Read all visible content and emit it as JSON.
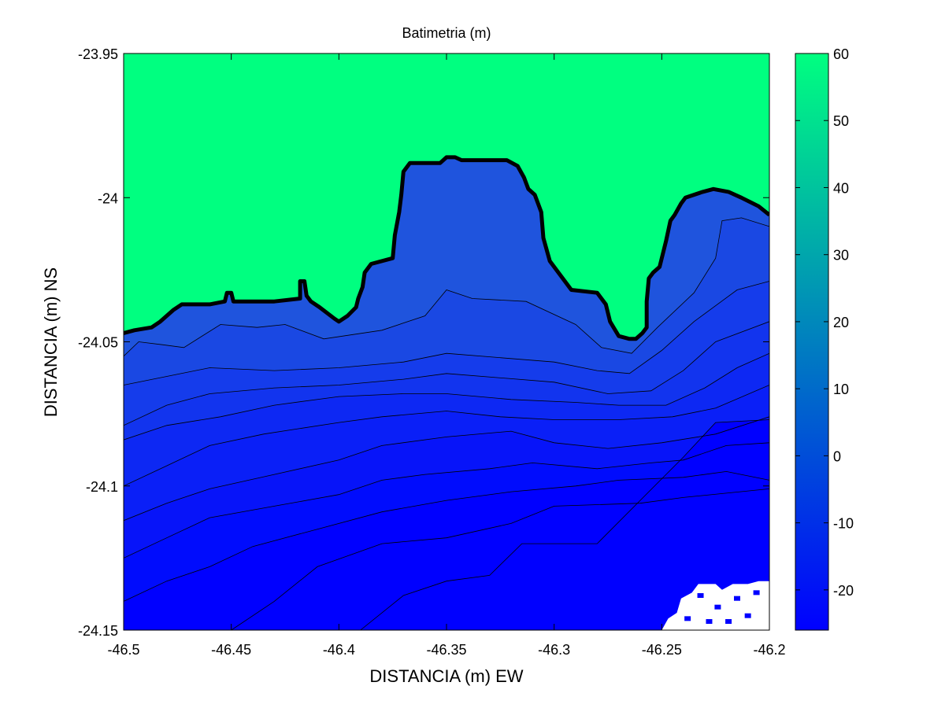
{
  "chart_data": {
    "type": "contour",
    "title": "Batimetria (m)",
    "xlabel": "DISTANCIA (m) EW",
    "ylabel": "DISTANCIA (m) NS",
    "xlim": [
      -46.5,
      -46.2
    ],
    "ylim": [
      -24.15,
      -23.95
    ],
    "xticks": [
      -46.5,
      -46.45,
      -46.4,
      -46.35,
      -46.3,
      -46.25,
      -46.2
    ],
    "xtick_labels": [
      "-46.5",
      "-46.45",
      "-46.4",
      "-46.35",
      "-46.3",
      "-46.25",
      "-46.2"
    ],
    "yticks": [
      -24.15,
      -24.1,
      -24.05,
      -24,
      -23.95
    ],
    "ytick_labels": [
      "-24.15",
      "-24.1",
      "-24.05",
      "-24",
      "-23.95"
    ],
    "colorbar": {
      "range": [
        -26,
        60
      ],
      "ticks": [
        -20,
        -10,
        0,
        10,
        20,
        30,
        40,
        50,
        60
      ],
      "tick_labels": [
        "-20",
        "-10",
        "0",
        "10",
        "20",
        "30",
        "40",
        "50",
        "60"
      ],
      "colors": [
        "#0000ff",
        "#00ff80"
      ]
    },
    "land_color": "#00ff80",
    "water_colors": [
      "#1f54dd",
      "#1a48e3",
      "#153ceb",
      "#1234ee",
      "#0d28f3",
      "#0a1ff7",
      "#0714f9",
      "#000cfd",
      "#0000ff"
    ],
    "grid": false,
    "coastline": [
      [
        -46.5,
        -24.047
      ],
      [
        -46.495,
        -24.046
      ],
      [
        -46.487,
        -24.045
      ],
      [
        -46.483,
        -24.043
      ],
      [
        -46.477,
        -24.039
      ],
      [
        -46.473,
        -24.037
      ],
      [
        -46.46,
        -24.037
      ],
      [
        -46.453,
        -24.036
      ],
      [
        -46.452,
        -24.033
      ],
      [
        -46.45,
        -24.033
      ],
      [
        -46.449,
        -24.036
      ],
      [
        -46.43,
        -24.036
      ],
      [
        -46.418,
        -24.035
      ],
      [
        -46.418,
        -24.029
      ],
      [
        -46.416,
        -24.029
      ],
      [
        -46.415,
        -24.034
      ],
      [
        -46.413,
        -24.036
      ],
      [
        -46.409,
        -24.038
      ],
      [
        -46.402,
        -24.042
      ],
      [
        -46.4,
        -24.043
      ],
      [
        -46.396,
        -24.041
      ],
      [
        -46.392,
        -24.038
      ],
      [
        -46.391,
        -24.035
      ],
      [
        -46.389,
        -24.031
      ],
      [
        -46.388,
        -24.026
      ],
      [
        -46.385,
        -24.023
      ],
      [
        -46.375,
        -24.021
      ],
      [
        -46.374,
        -24.013
      ],
      [
        -46.372,
        -24.005
      ],
      [
        -46.371,
        -23.999
      ],
      [
        -46.37,
        -23.991
      ],
      [
        -46.367,
        -23.988
      ],
      [
        -46.353,
        -23.988
      ],
      [
        -46.35,
        -23.986
      ],
      [
        -46.346,
        -23.986
      ],
      [
        -46.343,
        -23.987
      ],
      [
        -46.322,
        -23.987
      ],
      [
        -46.317,
        -23.989
      ],
      [
        -46.314,
        -23.993
      ],
      [
        -46.312,
        -23.997
      ],
      [
        -46.309,
        -23.999
      ],
      [
        -46.306,
        -24.005
      ],
      [
        -46.305,
        -24.014
      ],
      [
        -46.302,
        -24.022
      ],
      [
        -46.297,
        -24.027
      ],
      [
        -46.292,
        -24.032
      ],
      [
        -46.28,
        -24.033
      ],
      [
        -46.276,
        -24.037
      ],
      [
        -46.274,
        -24.043
      ],
      [
        -46.27,
        -24.048
      ],
      [
        -46.265,
        -24.049
      ],
      [
        -46.262,
        -24.049
      ],
      [
        -46.259,
        -24.047
      ],
      [
        -46.257,
        -24.045
      ],
      [
        -46.257,
        -24.036
      ],
      [
        -46.256,
        -24.028
      ],
      [
        -46.254,
        -24.026
      ],
      [
        -46.251,
        -24.024
      ],
      [
        -46.248,
        -24.015
      ],
      [
        -46.246,
        -24.008
      ],
      [
        -46.244,
        -24.006
      ],
      [
        -46.241,
        -24.002
      ],
      [
        -46.239,
        -24.0
      ],
      [
        -46.231,
        -23.998
      ],
      [
        -46.226,
        -23.997
      ],
      [
        -46.219,
        -23.998
      ],
      [
        -46.213,
        -24.0
      ],
      [
        -46.205,
        -24.003
      ],
      [
        -46.2,
        -24.006
      ]
    ],
    "depth_contours": [
      [
        [
          -46.5,
          -24.055
        ],
        [
          -46.493,
          -24.05
        ],
        [
          -46.482,
          -24.051
        ],
        [
          -46.472,
          -24.052
        ],
        [
          -46.455,
          -24.044
        ],
        [
          -46.438,
          -24.045
        ],
        [
          -46.425,
          -24.044
        ],
        [
          -46.407,
          -24.049
        ],
        [
          -46.38,
          -24.046
        ],
        [
          -46.36,
          -24.041
        ],
        [
          -46.35,
          -24.032
        ],
        [
          -46.338,
          -24.035
        ],
        [
          -46.313,
          -24.036
        ],
        [
          -46.29,
          -24.044
        ],
        [
          -46.278,
          -24.052
        ],
        [
          -46.264,
          -24.054
        ],
        [
          -46.252,
          -24.045
        ],
        [
          -46.235,
          -24.033
        ],
        [
          -46.225,
          -24.021
        ],
        [
          -46.222,
          -24.008
        ],
        [
          -46.213,
          -24.007
        ],
        [
          -46.2,
          -24.01
        ]
      ],
      [
        [
          -46.5,
          -24.065
        ],
        [
          -46.48,
          -24.062
        ],
        [
          -46.46,
          -24.059
        ],
        [
          -46.43,
          -24.06
        ],
        [
          -46.4,
          -24.059
        ],
        [
          -46.37,
          -24.057
        ],
        [
          -46.35,
          -24.054
        ],
        [
          -46.3,
          -24.057
        ],
        [
          -46.28,
          -24.06
        ],
        [
          -46.265,
          -24.061
        ],
        [
          -46.25,
          -24.053
        ],
        [
          -46.235,
          -24.043
        ],
        [
          -46.215,
          -24.032
        ],
        [
          -46.2,
          -24.029
        ]
      ],
      [
        [
          -46.5,
          -24.079
        ],
        [
          -46.48,
          -24.072
        ],
        [
          -46.46,
          -24.068
        ],
        [
          -46.43,
          -24.066
        ],
        [
          -46.4,
          -24.065
        ],
        [
          -46.37,
          -24.063
        ],
        [
          -46.35,
          -24.061
        ],
        [
          -46.3,
          -24.064
        ],
        [
          -46.275,
          -24.068
        ],
        [
          -46.255,
          -24.067
        ],
        [
          -46.24,
          -24.06
        ],
        [
          -46.225,
          -24.05
        ],
        [
          -46.2,
          -24.043
        ]
      ],
      [
        [
          -46.5,
          -24.084
        ],
        [
          -46.48,
          -24.079
        ],
        [
          -46.455,
          -24.076
        ],
        [
          -46.43,
          -24.072
        ],
        [
          -46.4,
          -24.069
        ],
        [
          -46.37,
          -24.068
        ],
        [
          -46.35,
          -24.068
        ],
        [
          -46.32,
          -24.07
        ],
        [
          -46.29,
          -24.071
        ],
        [
          -46.27,
          -24.072
        ],
        [
          -46.248,
          -24.072
        ],
        [
          -46.23,
          -24.066
        ],
        [
          -46.215,
          -24.059
        ],
        [
          -46.2,
          -24.054
        ]
      ],
      [
        [
          -46.5,
          -24.1
        ],
        [
          -46.48,
          -24.093
        ],
        [
          -46.46,
          -24.086
        ],
        [
          -46.435,
          -24.082
        ],
        [
          -46.4,
          -24.078
        ],
        [
          -46.38,
          -24.076
        ],
        [
          -46.35,
          -24.074
        ],
        [
          -46.325,
          -24.076
        ],
        [
          -46.3,
          -24.077
        ],
        [
          -46.27,
          -24.077
        ],
        [
          -46.245,
          -24.076
        ],
        [
          -46.225,
          -24.073
        ],
        [
          -46.2,
          -24.065
        ]
      ],
      [
        [
          -46.5,
          -24.112
        ],
        [
          -46.48,
          -24.106
        ],
        [
          -46.46,
          -24.101
        ],
        [
          -46.43,
          -24.096
        ],
        [
          -46.4,
          -24.091
        ],
        [
          -46.38,
          -24.086
        ],
        [
          -46.35,
          -24.083
        ],
        [
          -46.32,
          -24.081
        ],
        [
          -46.3,
          -24.085
        ],
        [
          -46.275,
          -24.087
        ],
        [
          -46.25,
          -24.085
        ],
        [
          -46.225,
          -24.082
        ],
        [
          -46.2,
          -24.076
        ]
      ],
      [
        [
          -46.5,
          -24.125
        ],
        [
          -46.48,
          -24.118
        ],
        [
          -46.46,
          -24.111
        ],
        [
          -46.43,
          -24.107
        ],
        [
          -46.4,
          -24.103
        ],
        [
          -46.38,
          -24.098
        ],
        [
          -46.36,
          -24.096
        ],
        [
          -46.33,
          -24.094
        ],
        [
          -46.31,
          -24.092
        ],
        [
          -46.28,
          -24.094
        ],
        [
          -46.255,
          -24.092
        ],
        [
          -46.24,
          -24.091
        ],
        [
          -46.22,
          -24.086
        ],
        [
          -46.2,
          -24.085
        ]
      ],
      [
        [
          -46.5,
          -24.14
        ],
        [
          -46.48,
          -24.133
        ],
        [
          -46.46,
          -24.128
        ],
        [
          -46.44,
          -24.121
        ],
        [
          -46.41,
          -24.115
        ],
        [
          -46.38,
          -24.109
        ],
        [
          -46.35,
          -24.105
        ],
        [
          -46.32,
          -24.102
        ],
        [
          -46.29,
          -24.1
        ],
        [
          -46.27,
          -24.098
        ],
        [
          -46.24,
          -24.097
        ],
        [
          -46.22,
          -24.095
        ],
        [
          -46.2,
          -24.098
        ]
      ],
      [
        [
          -46.45,
          -24.15
        ],
        [
          -46.43,
          -24.14
        ],
        [
          -46.41,
          -24.128
        ],
        [
          -46.38,
          -24.12
        ],
        [
          -46.35,
          -24.118
        ],
        [
          -46.32,
          -24.113
        ],
        [
          -46.3,
          -24.107
        ],
        [
          -46.26,
          -24.106
        ],
        [
          -46.24,
          -24.104
        ],
        [
          -46.2,
          -24.101
        ]
      ],
      [
        [
          -46.39,
          -24.15
        ],
        [
          -46.37,
          -24.138
        ],
        [
          -46.35,
          -24.133
        ],
        [
          -46.33,
          -24.131
        ],
        [
          -46.315,
          -24.12
        ],
        [
          -46.28,
          -24.12
        ],
        [
          -46.24,
          -24.09
        ],
        [
          -46.225,
          -24.078
        ],
        [
          -46.2,
          -24.077
        ]
      ]
    ],
    "nodata_color": "#ffffff"
  }
}
